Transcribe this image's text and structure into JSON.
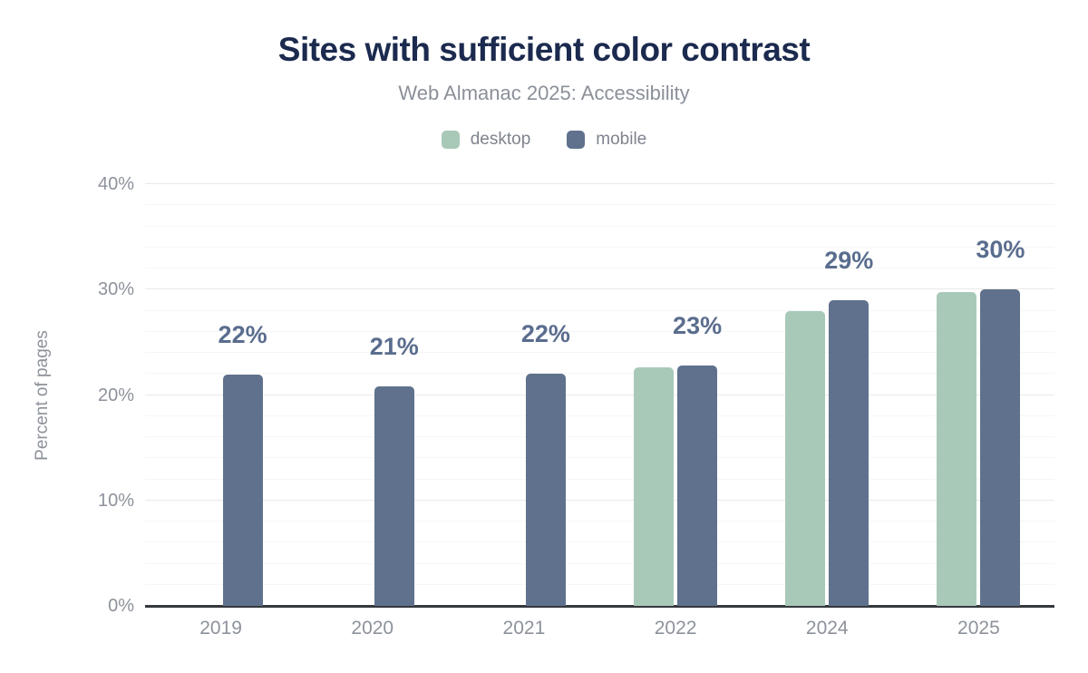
{
  "chart_data": {
    "type": "bar",
    "title": "Sites with sufficient color contrast",
    "subtitle": "Web Almanac 2025: Accessibility",
    "ylabel": "Percent of pages",
    "xlabel": "",
    "categories": [
      "2019",
      "2020",
      "2021",
      "2022",
      "2024",
      "2025"
    ],
    "series": [
      {
        "name": "desktop",
        "color": "#a9c9b8",
        "values": [
          null,
          null,
          null,
          22.6,
          28.0,
          29.8
        ]
      },
      {
        "name": "mobile",
        "color": "#5f718c",
        "values": [
          21.9,
          20.8,
          22.0,
          22.8,
          29.0,
          30.0
        ]
      }
    ],
    "bar_labels": [
      "22%",
      "21%",
      "22%",
      "23%",
      "29%",
      "30%"
    ],
    "ylim": [
      0,
      40
    ],
    "ytick_major_step": 10,
    "ytick_minor_step": 2,
    "ytick_labels": [
      "0%",
      "10%",
      "20%",
      "30%",
      "40%"
    ],
    "grid": "horizontal-on",
    "legend_position": "top-center"
  },
  "colors": {
    "background": "#ffffff",
    "title": "#1b2a4e",
    "subtitle": "#8b9099",
    "axis_text": "#8d929b",
    "legend_text": "#7e838d",
    "value_label": "#5a6d8e",
    "axis_line": "#35383d",
    "grid_major": "#e9e9e9",
    "grid_minor": "#f6f6f6",
    "desktop": "#a9c9b8",
    "mobile": "#5f718c"
  }
}
